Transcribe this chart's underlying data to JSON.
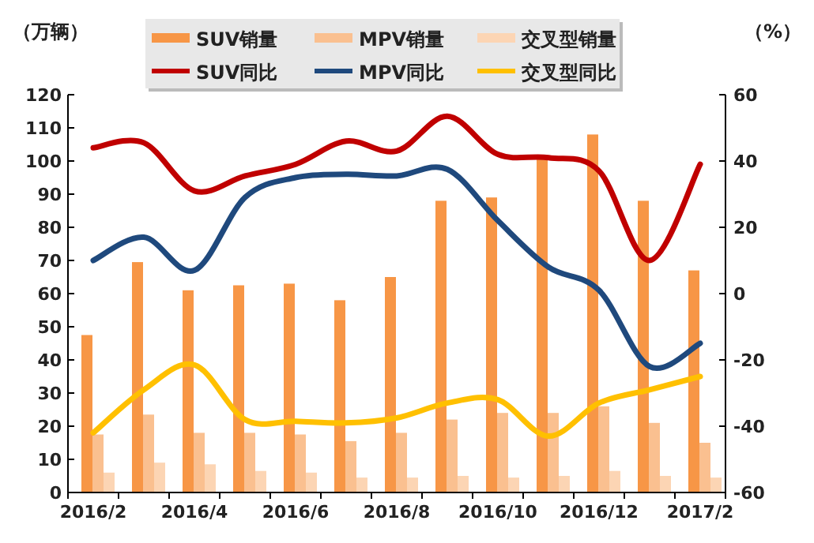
{
  "chart_data": {
    "type": "bar",
    "ylabel": "（万辆）",
    "y2label": "（%）",
    "categories": [
      "2016/2",
      null,
      "2016/4",
      null,
      "2016/6",
      null,
      "2016/8",
      null,
      "2016/10",
      null,
      "2016/12",
      null,
      "2017/2"
    ],
    "series": [
      {
        "name": "SUV销量",
        "color": "#f79646",
        "values": [
          47.5,
          69.5,
          61,
          62.5,
          63,
          58,
          65,
          88,
          89,
          101,
          108,
          88,
          67
        ]
      },
      {
        "name": "MPV销量",
        "color": "#fac090",
        "values": [
          17.5,
          23.5,
          18,
          18,
          17.5,
          15.5,
          18,
          22,
          24,
          24,
          26,
          21,
          15
        ]
      },
      {
        "name": "交叉型销量",
        "color": "#fcd5b4",
        "values": [
          6,
          9,
          8.5,
          6.5,
          6,
          4.5,
          4.5,
          5,
          4.5,
          5,
          6.5,
          5,
          4.5
        ]
      },
      {
        "name": "SUV同比",
        "type": "line",
        "axis": "y2",
        "color": "#c00000",
        "values": [
          44,
          45.5,
          31,
          35.5,
          39,
          46,
          43,
          53.5,
          42,
          41,
          37,
          10,
          39
        ]
      },
      {
        "name": "MPV同比",
        "type": "line",
        "axis": "y2",
        "color": "#1f497d",
        "values": [
          10,
          17,
          7,
          29,
          35,
          36,
          35.5,
          37.5,
          22,
          8,
          1,
          -22,
          -15
        ]
      },
      {
        "name": "交叉型同比",
        "type": "line",
        "axis": "y2",
        "color": "#ffc000",
        "values": [
          -42,
          -29,
          -21.5,
          -38,
          -38.5,
          -39,
          -37.5,
          -33,
          -32,
          -43,
          -33,
          -29,
          -25
        ]
      }
    ],
    "ylim": [
      0,
      120
    ],
    "yticks": [
      0,
      10,
      20,
      30,
      40,
      50,
      60,
      70,
      80,
      90,
      100,
      110,
      120
    ],
    "y2lim": [
      -60,
      60
    ],
    "y2ticks": [
      -60,
      -40,
      -20,
      0,
      20,
      40,
      60
    ],
    "legend": "top",
    "grid": false,
    "marker": "none"
  }
}
